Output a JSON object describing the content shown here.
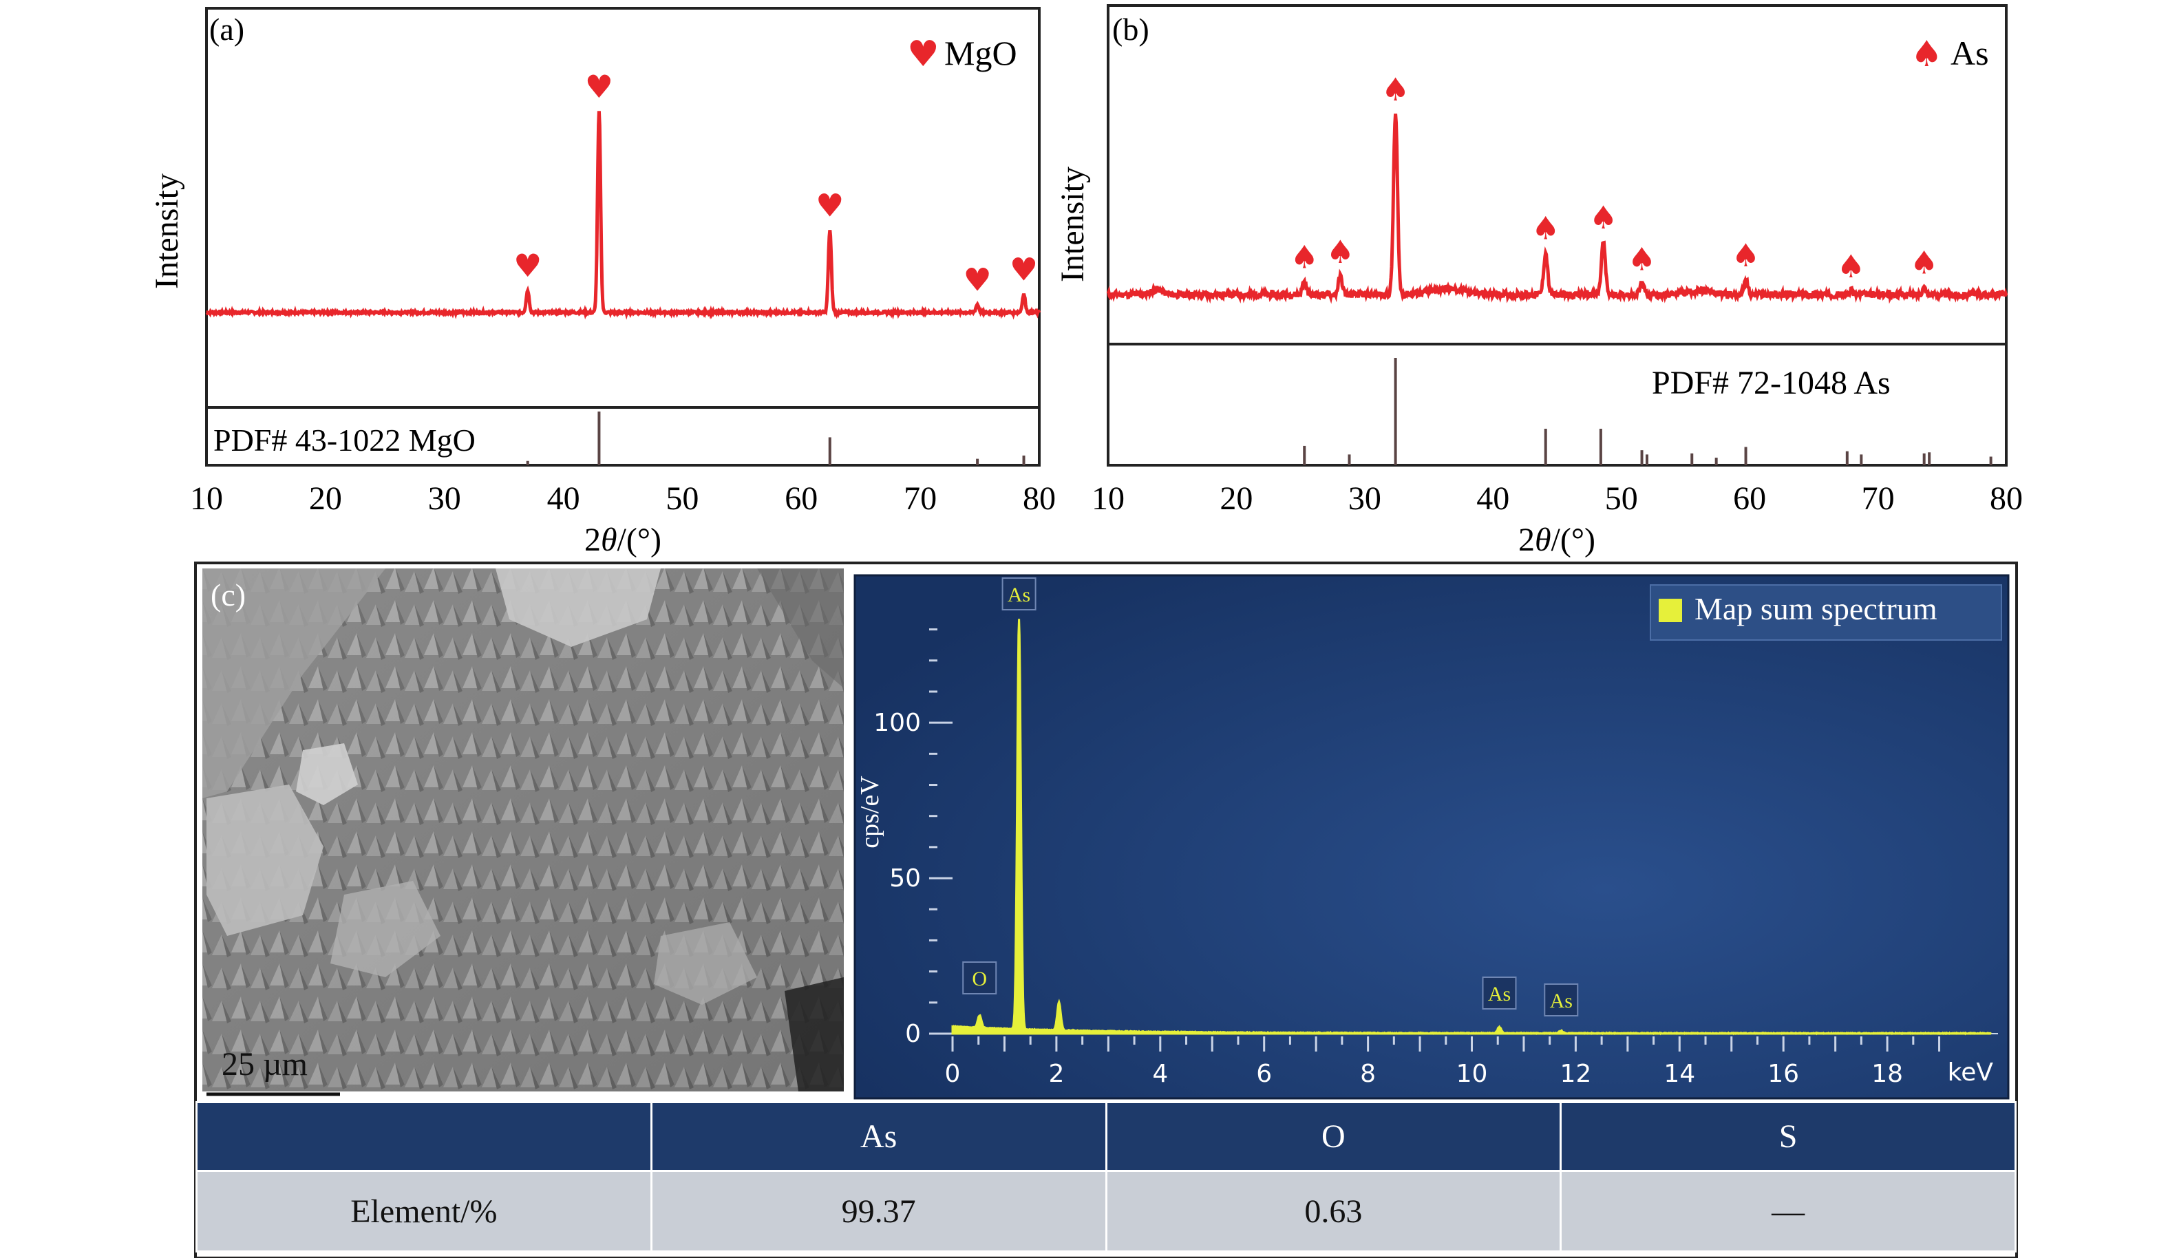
{
  "chart_data": [
    {
      "panel": "(a)",
      "type": "line",
      "ylabel": "Intensity",
      "xlabel_prefix": "2",
      "xlabel_theta": "θ",
      "xlabel_suffix": "/(°)",
      "xlim": [
        10,
        80
      ],
      "xticks": [
        10,
        20,
        30,
        40,
        50,
        60,
        70,
        80
      ],
      "legend": {
        "label": "MgO",
        "marker": "heart",
        "position": "top-right"
      },
      "series_color": "#e8262b",
      "peaks": [
        {
          "x": 37.0,
          "y": 0.11
        },
        {
          "x": 43.0,
          "y": 1.0
        },
        {
          "x": 62.4,
          "y": 0.41
        },
        {
          "x": 74.8,
          "y": 0.04
        },
        {
          "x": 78.7,
          "y": 0.09
        }
      ],
      "reference": {
        "label": "PDF# 43-1022 MgO",
        "lines": [
          {
            "x": 37.0,
            "h": 0.08
          },
          {
            "x": 43.0,
            "h": 1.0
          },
          {
            "x": 62.4,
            "h": 0.52
          },
          {
            "x": 74.8,
            "h": 0.12
          },
          {
            "x": 78.7,
            "h": 0.18
          }
        ]
      }
    },
    {
      "panel": "(b)",
      "type": "line",
      "ylabel": "Intensity",
      "xlabel_prefix": "2",
      "xlabel_theta": "θ",
      "xlabel_suffix": "/(°)",
      "xlim": [
        10,
        80
      ],
      "xticks": [
        10,
        20,
        30,
        40,
        50,
        60,
        70,
        80
      ],
      "legend": {
        "label": "As",
        "marker": "spade",
        "position": "top-right"
      },
      "series_color": "#e8262b",
      "peaks": [
        {
          "x": 25.3,
          "y": 0.07
        },
        {
          "x": 28.1,
          "y": 0.1
        },
        {
          "x": 32.4,
          "y": 1.0
        },
        {
          "x": 44.1,
          "y": 0.23
        },
        {
          "x": 48.6,
          "y": 0.29
        },
        {
          "x": 51.6,
          "y": 0.06
        },
        {
          "x": 59.7,
          "y": 0.08
        },
        {
          "x": 67.9,
          "y": 0.02
        },
        {
          "x": 73.6,
          "y": 0.04
        }
      ],
      "reference": {
        "label": "PDF# 72-1048 As",
        "lines": [
          {
            "x": 25.3,
            "h": 0.18
          },
          {
            "x": 28.8,
            "h": 0.1
          },
          {
            "x": 32.4,
            "h": 1.0
          },
          {
            "x": 44.1,
            "h": 0.34
          },
          {
            "x": 48.4,
            "h": 0.34
          },
          {
            "x": 51.6,
            "h": 0.14
          },
          {
            "x": 52.0,
            "h": 0.1
          },
          {
            "x": 55.5,
            "h": 0.11
          },
          {
            "x": 57.4,
            "h": 0.07
          },
          {
            "x": 59.7,
            "h": 0.17
          },
          {
            "x": 67.6,
            "h": 0.13
          },
          {
            "x": 68.7,
            "h": 0.1
          },
          {
            "x": 73.6,
            "h": 0.11
          },
          {
            "x": 74.0,
            "h": 0.12
          },
          {
            "x": 78.8,
            "h": 0.08
          }
        ]
      }
    },
    {
      "panel": "(c)",
      "type": "line",
      "ylabel": "cps/eV",
      "xlabel": "keV",
      "xlim": [
        0,
        20
      ],
      "ylim": [
        0,
        135
      ],
      "xticks": [
        0,
        2,
        4,
        6,
        8,
        10,
        12,
        14,
        16,
        18
      ],
      "yticks": [
        0,
        50,
        100
      ],
      "legend": {
        "label": "Map sum spectrum",
        "position": "top-right"
      },
      "series_color": "#e6f03a",
      "peaks": [
        {
          "x": 0.52,
          "y": 4
        },
        {
          "x": 1.28,
          "y": 132
        },
        {
          "x": 2.05,
          "y": 9
        },
        {
          "x": 10.53,
          "y": 2
        },
        {
          "x": 11.72,
          "y": 0.8
        }
      ],
      "peak_labels": [
        {
          "text": "O",
          "x": 0.52
        },
        {
          "text": "As",
          "x": 1.28
        },
        {
          "text": "As",
          "x": 10.53
        },
        {
          "text": "As",
          "x": 11.72
        }
      ]
    }
  ],
  "sem_image": {
    "scale_bar_label": "25 µm"
  },
  "table": {
    "headers": [
      "",
      "As",
      "O",
      "S"
    ],
    "row_label": "Element/%",
    "values": [
      "99.37",
      "0.63",
      "—"
    ]
  },
  "colors": {
    "table_header": "#1e3a6a",
    "table_body": "#c9ced6",
    "eds_background": "#1f3d70"
  }
}
